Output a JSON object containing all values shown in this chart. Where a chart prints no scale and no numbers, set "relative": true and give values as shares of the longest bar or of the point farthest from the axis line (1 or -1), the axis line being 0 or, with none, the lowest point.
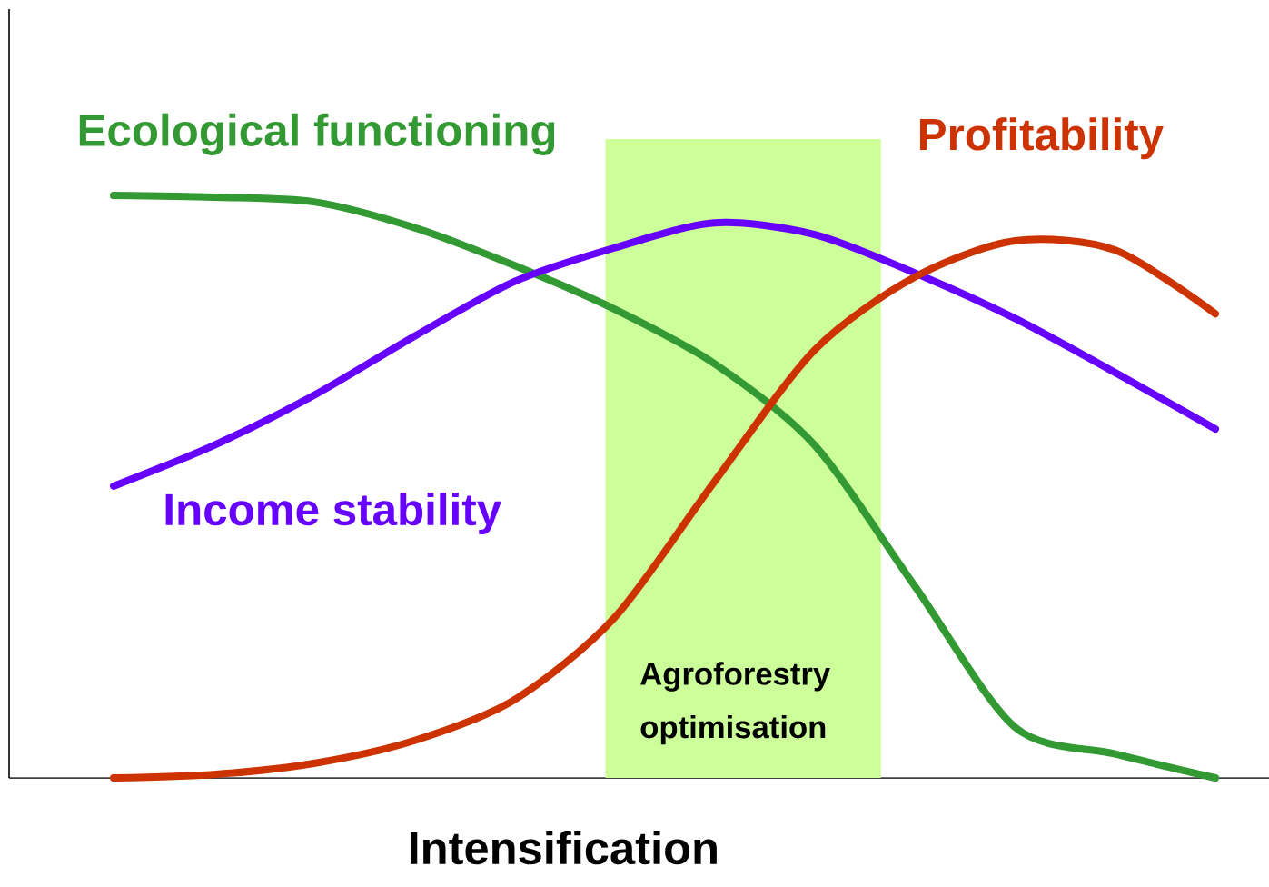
{
  "chart_data": {
    "type": "line",
    "relative": true,
    "xlabel": "Intensification",
    "categories": [
      null,
      null,
      null,
      null,
      null,
      null,
      null,
      null,
      null,
      null,
      null,
      null
    ],
    "series": [
      {
        "name": "Ecological functioning",
        "color": "#339933",
        "values": [
          1,
          0.997,
          0.989,
          0.945,
          0.88,
          0.805,
          0.711,
          0.571,
          0.329,
          0.087,
          0.041,
          0
        ]
      },
      {
        "name": "Income stability",
        "color": "#6600ff",
        "values": [
          0.501,
          0.571,
          0.657,
          0.758,
          0.852,
          0.91,
          0.953,
          0.933,
          0.867,
          0.789,
          0.696,
          0.599
        ]
      },
      {
        "name": "Profitability",
        "color": "#cc3300",
        "values": [
          0,
          0.006,
          0.025,
          0.064,
          0.134,
          0.275,
          0.509,
          0.735,
          0.86,
          0.922,
          0.906,
          0.797
        ]
      }
    ],
    "annotations": [
      "Agroforestry optimisation"
    ],
    "legend": false,
    "marker": "none",
    "line_style": "solid"
  }
}
